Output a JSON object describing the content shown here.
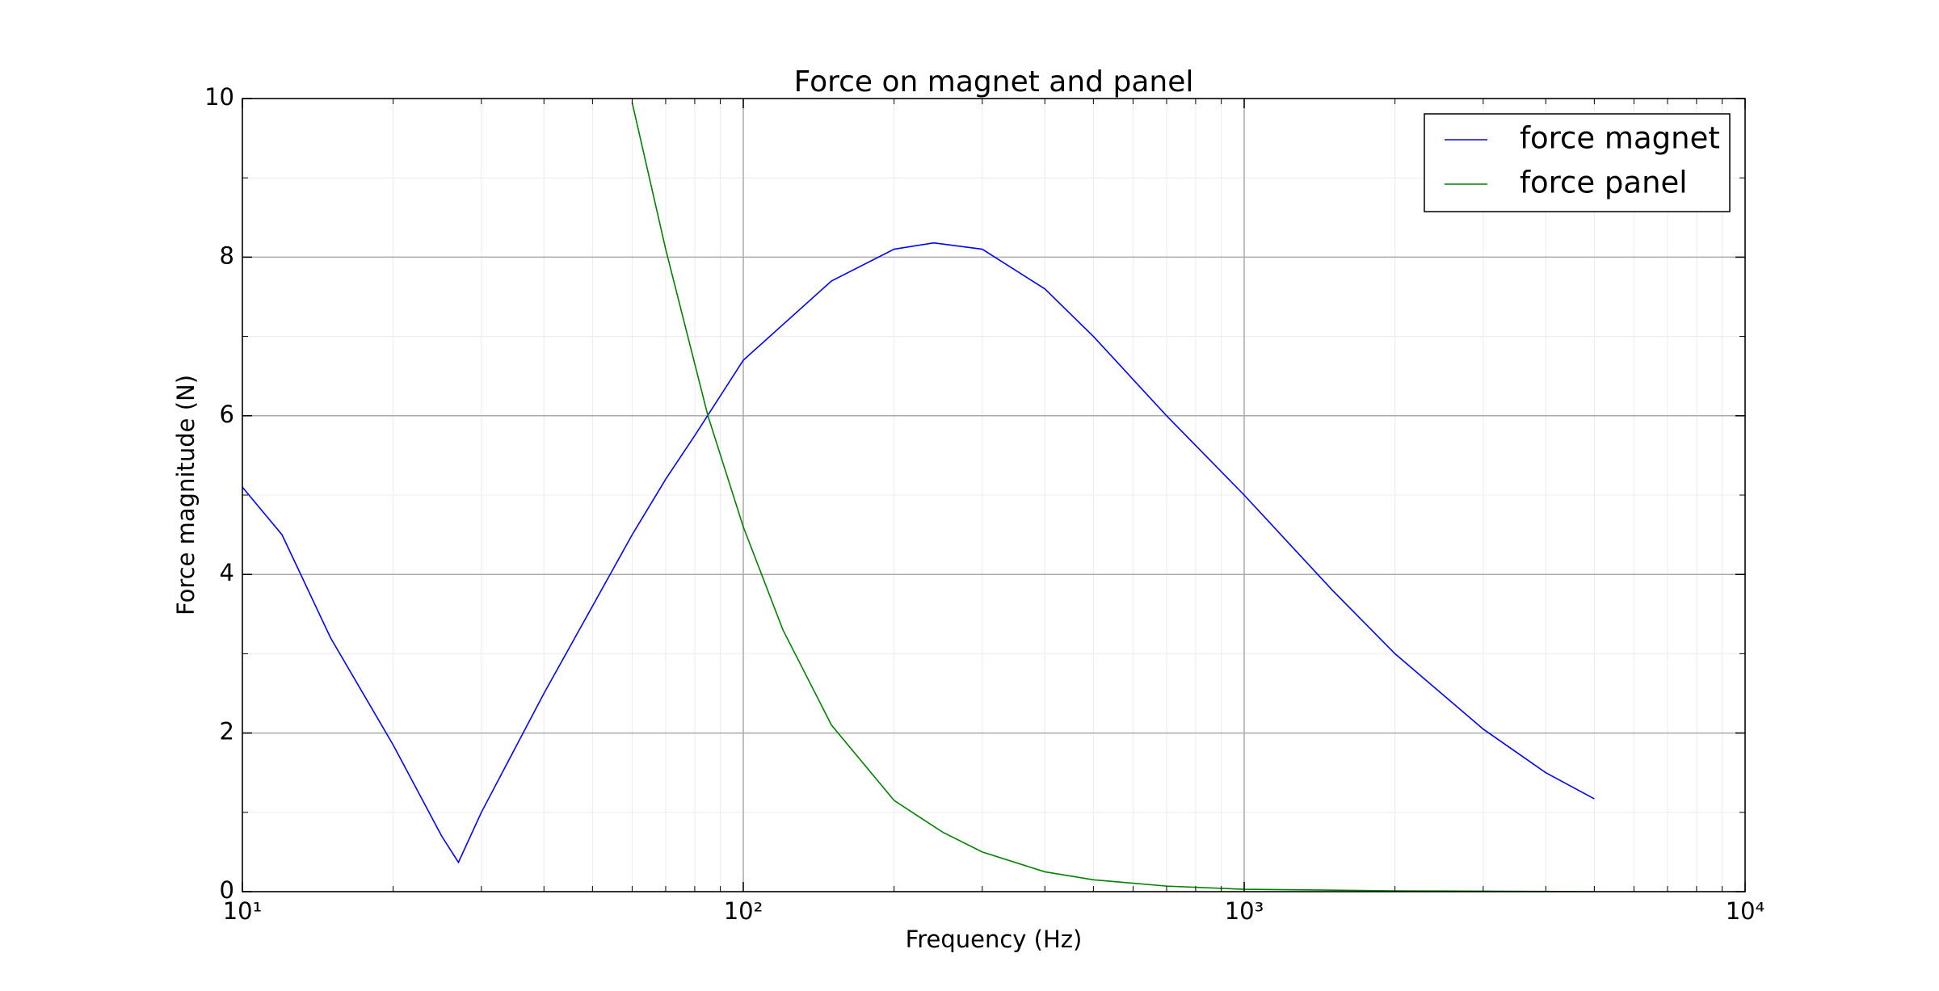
{
  "chart_data": {
    "type": "line",
    "title": "Force on magnet and panel",
    "x_label": "Frequency (Hz)",
    "y_label": "Force magnitude (N)",
    "x_scale": "log",
    "xlim": [
      10,
      10000
    ],
    "xticks": [
      {
        "value": 10,
        "label": "10¹"
      },
      {
        "value": 100,
        "label": "10²"
      },
      {
        "value": 1000,
        "label": "10³"
      },
      {
        "value": 10000,
        "label": "10⁴"
      }
    ],
    "ylim": [
      0,
      10
    ],
    "yticks": [
      0,
      2,
      4,
      6,
      8,
      10
    ],
    "grid": true,
    "legend": "upper right",
    "series": [
      {
        "name": "force magnet",
        "color": "#0000ff",
        "x": [
          10,
          12,
          15,
          20,
          25,
          27,
          30,
          40,
          50,
          60,
          70,
          80,
          100,
          150,
          200,
          240,
          300,
          400,
          500,
          700,
          1000,
          1500,
          2000,
          3000,
          4000,
          5000
        ],
        "values": [
          5.1,
          4.5,
          3.2,
          1.85,
          0.7,
          0.37,
          1.0,
          2.5,
          3.6,
          4.5,
          5.2,
          5.75,
          6.7,
          7.7,
          8.1,
          8.18,
          8.1,
          7.6,
          7.0,
          6.0,
          5.0,
          3.8,
          3.0,
          2.05,
          1.5,
          1.17
        ]
      },
      {
        "name": "force panel",
        "color": "#008000",
        "x": [
          60,
          70,
          85,
          100,
          120,
          150,
          200,
          250,
          300,
          400,
          500,
          700,
          1000,
          2000,
          5000
        ],
        "values": [
          9.95,
          8.1,
          6.0,
          4.6,
          3.3,
          2.1,
          1.15,
          0.75,
          0.5,
          0.25,
          0.15,
          0.07,
          0.03,
          0.01,
          0.0
        ]
      }
    ]
  }
}
